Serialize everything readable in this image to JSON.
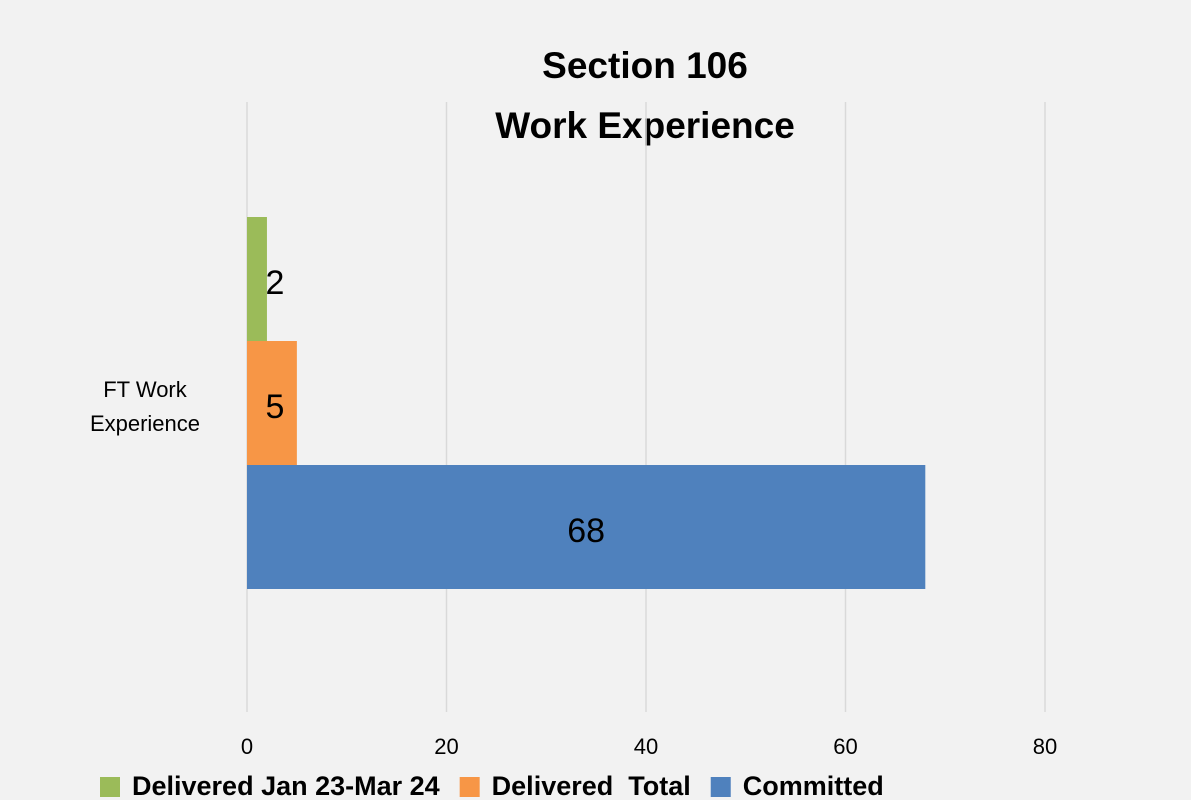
{
  "chart_data": {
    "type": "bar",
    "orientation": "horizontal",
    "title": [
      "Section 106",
      "Work Experience"
    ],
    "categories": [
      "FT Work Experience"
    ],
    "series": [
      {
        "name": "Delivered Jan 23-Mar 24",
        "color": "#9bbb59",
        "values": [
          2
        ]
      },
      {
        "name": "Delivered  Total",
        "color": "#f79646",
        "values": [
          5
        ]
      },
      {
        "name": "Committed",
        "color": "#4f81bd",
        "values": [
          68
        ]
      }
    ],
    "xlim": [
      0,
      80
    ],
    "xticks": [
      0,
      20,
      40,
      60,
      80
    ],
    "grid": true,
    "legend": "bottom"
  }
}
